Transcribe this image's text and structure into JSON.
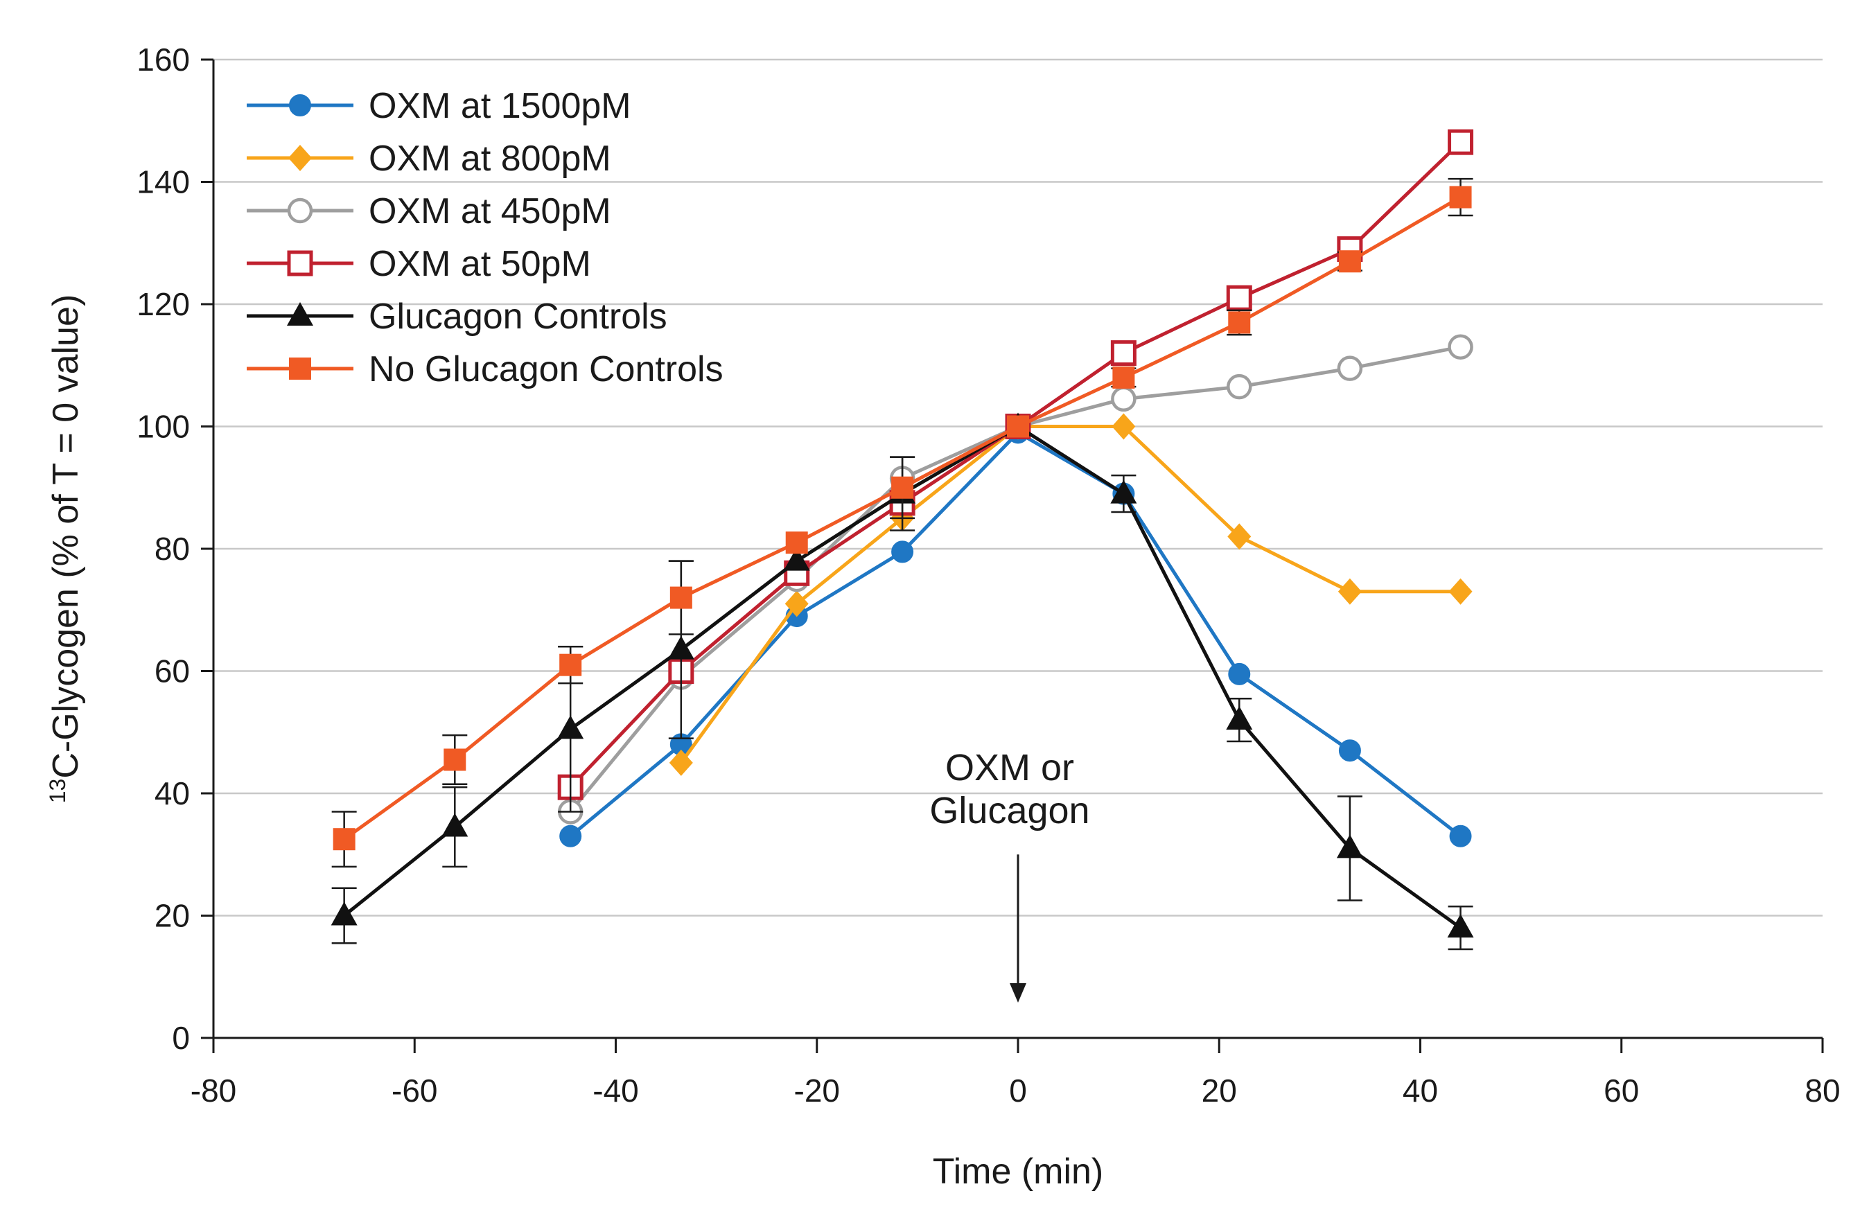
{
  "chart_data": {
    "type": "line",
    "title": "",
    "xlabel": "Time (min)",
    "ylabel_sup": "13",
    "ylabel": "C-Glycogen (% of T = 0 value)",
    "xlim": [
      -80,
      80
    ],
    "ylim": [
      0,
      160
    ],
    "xticks": [
      -80,
      -60,
      -40,
      -20,
      0,
      20,
      40,
      60,
      80
    ],
    "yticks": [
      0,
      20,
      40,
      60,
      80,
      100,
      120,
      140,
      160
    ],
    "grid": "horizontal",
    "legend_position": "top-left",
    "annotation": {
      "lines": [
        "OXM or",
        "Glucagon"
      ],
      "x": 0,
      "arrow_from_y": 30,
      "arrow_to_y": 6
    },
    "series": [
      {
        "name": "OXM at 1500pM",
        "color": "#1f77c4",
        "marker": "circle-filled",
        "points": [
          [
            -44.5,
            33
          ],
          [
            -33.5,
            48
          ],
          [
            -22,
            69
          ],
          [
            -11.5,
            79.5
          ],
          [
            0,
            99
          ],
          [
            10.5,
            89
          ],
          [
            22,
            59.5
          ],
          [
            33,
            47
          ],
          [
            44,
            33
          ]
        ],
        "errors": []
      },
      {
        "name": "OXM at 800pM",
        "color": "#f8a51a",
        "marker": "diamond-filled",
        "points": [
          [
            -33.5,
            45
          ],
          [
            -22,
            71
          ],
          [
            -11.5,
            85
          ],
          [
            0,
            100
          ],
          [
            10.5,
            100
          ],
          [
            22,
            82
          ],
          [
            33,
            73
          ],
          [
            44,
            73
          ]
        ],
        "errors": []
      },
      {
        "name": "OXM at 450pM",
        "color": "#9e9e9e",
        "marker": "circle-open",
        "points": [
          [
            -44.5,
            37
          ],
          [
            -33.5,
            59
          ],
          [
            -22,
            75
          ],
          [
            -11.5,
            91.5
          ],
          [
            0,
            100
          ],
          [
            10.5,
            104.5
          ],
          [
            22,
            106.5
          ],
          [
            33,
            109.5
          ],
          [
            44,
            113
          ]
        ],
        "errors": []
      },
      {
        "name": "OXM at 50pM",
        "color": "#c0212f",
        "marker": "square-open",
        "points": [
          [
            -44.5,
            41
          ],
          [
            -33.5,
            60
          ],
          [
            -22,
            76
          ],
          [
            -11.5,
            87.5
          ],
          [
            0,
            100
          ],
          [
            10.5,
            112
          ],
          [
            22,
            121
          ],
          [
            33,
            129
          ],
          [
            44,
            146.5
          ]
        ],
        "errors": []
      },
      {
        "name": "Glucagon Controls",
        "color": "#111111",
        "marker": "triangle-filled",
        "points": [
          [
            -67,
            20
          ],
          [
            -56,
            34.5
          ],
          [
            -44.5,
            50.5
          ],
          [
            -33.5,
            63.5
          ],
          [
            -22,
            78
          ],
          [
            -11.5,
            89
          ],
          [
            0,
            100
          ],
          [
            10.5,
            89
          ],
          [
            22,
            52
          ],
          [
            33,
            31
          ],
          [
            44,
            18
          ]
        ],
        "errors": [
          4.5,
          6.5,
          13.5,
          14.5,
          0,
          6,
          0,
          3,
          3.5,
          8.5,
          3.5
        ]
      },
      {
        "name": "No Glucagon Controls",
        "color": "#f05a24",
        "marker": "square-filled",
        "points": [
          [
            -67,
            32.5
          ],
          [
            -56,
            45.5
          ],
          [
            -44.5,
            61
          ],
          [
            -33.5,
            72
          ],
          [
            -22,
            81
          ],
          [
            -11.5,
            90
          ],
          [
            0,
            100
          ],
          [
            10.5,
            108
          ],
          [
            22,
            117
          ],
          [
            33,
            127
          ],
          [
            44,
            137.5
          ]
        ],
        "errors": [
          4.5,
          4,
          3,
          6,
          0,
          5,
          0,
          1.5,
          2,
          1.5,
          3
        ]
      }
    ]
  }
}
